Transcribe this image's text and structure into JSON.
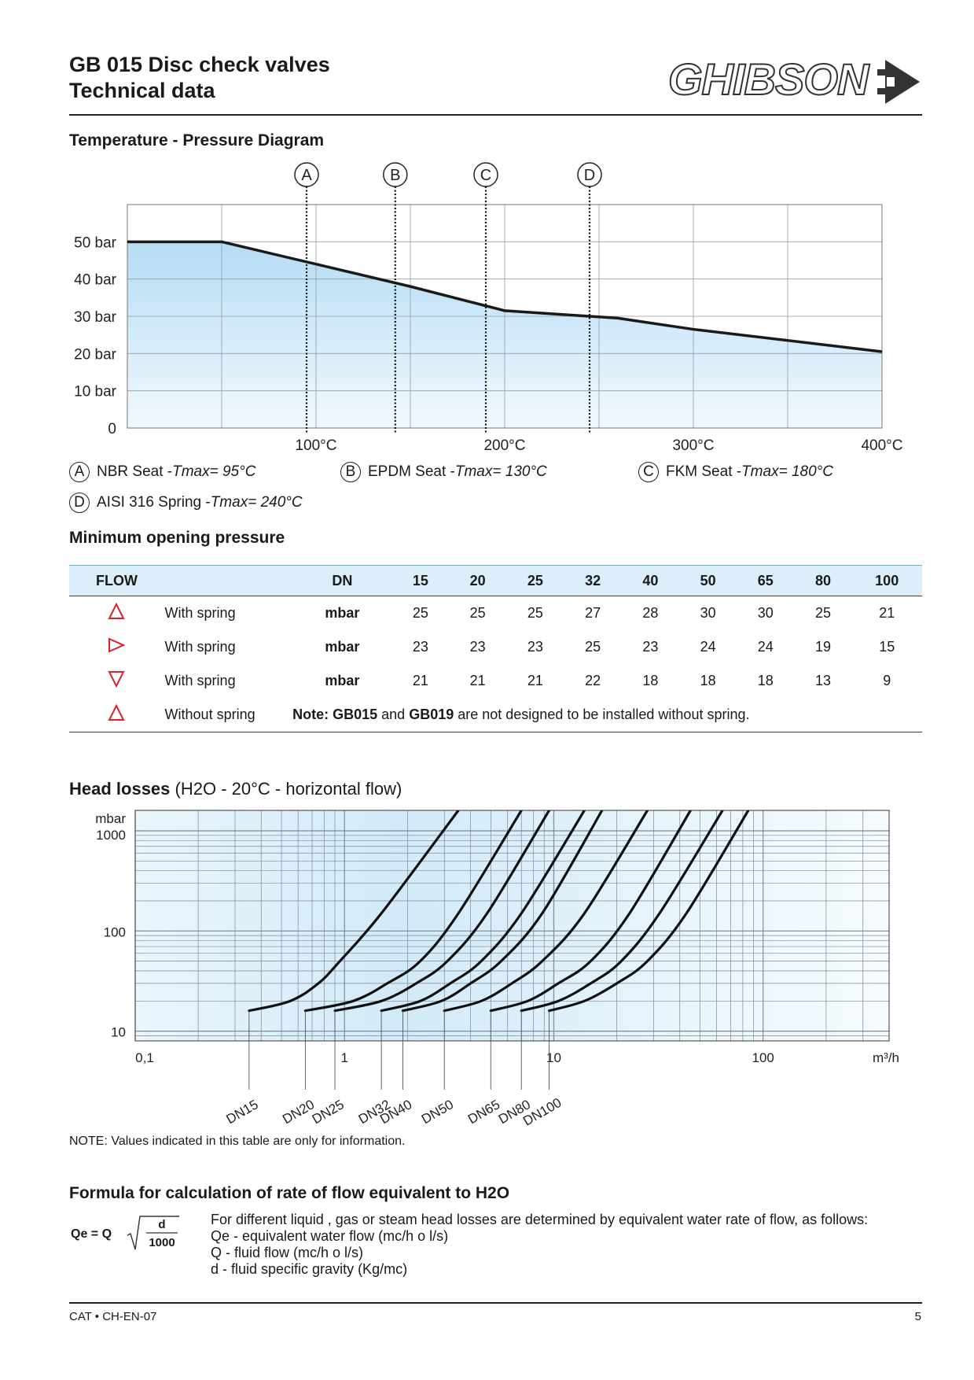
{
  "header": {
    "title_line1": "GB 015 Disc check valves",
    "title_line2": "Technical data",
    "logo_text": "GHIBSON"
  },
  "temp_section": {
    "heading": "Temperature - Pressure Diagram",
    "markers": [
      {
        "label": "A",
        "temp_c": 95
      },
      {
        "label": "B",
        "temp_c": 142
      },
      {
        "label": "C",
        "temp_c": 190
      },
      {
        "label": "D",
        "temp_c": 245
      }
    ],
    "legend": [
      {
        "letter": "A",
        "text": "NBR Seat - ",
        "italic": "Tmax= 95°C"
      },
      {
        "letter": "B",
        "text": "EPDM Seat - ",
        "italic": "Tmax= 130°C"
      },
      {
        "letter": "C",
        "text": "FKM Seat - ",
        "italic": "Tmax= 180°C"
      },
      {
        "letter": "D",
        "text": "AISI 316 Spring - ",
        "italic": "Tmax= 240°C"
      }
    ]
  },
  "chart_data": [
    {
      "type": "area",
      "title": "Temperature - Pressure Diagram",
      "x_tick_labels": [
        "100°C",
        "200°C",
        "300°C",
        "400°C"
      ],
      "y_tick_labels": [
        "0",
        "10 bar",
        "20 bar",
        "30 bar",
        "40 bar",
        "50 bar"
      ],
      "xlim": [
        0,
        400
      ],
      "ylim": [
        0,
        60
      ],
      "grid": true,
      "series": [
        {
          "x": [
            0,
            50,
            100,
            150,
            200,
            260,
            300,
            400
          ],
          "y": [
            50,
            50,
            44,
            38,
            31.5,
            29.5,
            26.5,
            20.5
          ]
        }
      ]
    },
    {
      "type": "line",
      "title": "Head losses (H2O - 20°C - horizontal flow)",
      "x_scale": "log",
      "y_scale": "log",
      "x_tick_labels": [
        "0,1",
        "1",
        "10",
        "100",
        "m³/h"
      ],
      "y_tick_labels": [
        "mbar",
        "1000",
        "100",
        "10"
      ],
      "xlim": [
        0.1,
        400
      ],
      "ylim": [
        8,
        1600
      ],
      "grid": true,
      "series": [
        {
          "name": "DN15",
          "x": [
            0.35,
            0.55,
            0.75,
            0.95,
            1.5,
            3.5
          ],
          "y": [
            16,
            20,
            30,
            50,
            150,
            1600
          ]
        },
        {
          "name": "DN20",
          "x": [
            0.65,
            1.1,
            1.6,
            2.3,
            3.5,
            7.0
          ],
          "y": [
            16,
            20,
            30,
            50,
            150,
            1600
          ]
        },
        {
          "name": "DN25",
          "x": [
            0.9,
            1.5,
            2.2,
            3.1,
            4.8,
            9.5
          ],
          "y": [
            16,
            20,
            30,
            50,
            150,
            1600
          ]
        },
        {
          "name": "DN32",
          "x": [
            1.5,
            2.3,
            3.2,
            4.5,
            7.0,
            14.0
          ],
          "y": [
            16,
            20,
            30,
            50,
            150,
            1600
          ]
        },
        {
          "name": "DN40",
          "x": [
            1.9,
            2.9,
            4.0,
            5.6,
            8.8,
            17.0
          ],
          "y": [
            16,
            20,
            30,
            50,
            150,
            1600
          ]
        },
        {
          "name": "DN50",
          "x": [
            3.0,
            4.5,
            6.3,
            8.8,
            14.0,
            28.0
          ],
          "y": [
            16,
            20,
            30,
            50,
            150,
            1600
          ]
        },
        {
          "name": "DN65",
          "x": [
            5.0,
            7.5,
            10.5,
            15.0,
            23.0,
            45.0
          ],
          "y": [
            16,
            20,
            30,
            50,
            150,
            1600
          ]
        },
        {
          "name": "DN80",
          "x": [
            7.0,
            10.5,
            15.0,
            21.0,
            32.0,
            64.0
          ],
          "y": [
            16,
            20,
            30,
            50,
            150,
            1600
          ]
        },
        {
          "name": "DN100",
          "x": [
            9.5,
            14.0,
            20.0,
            28.0,
            43.0,
            85.0
          ],
          "y": [
            16,
            20,
            30,
            50,
            150,
            1600
          ]
        }
      ]
    }
  ],
  "min_opening": {
    "heading": "Minimum opening pressure",
    "col_flow": "FLOW",
    "col_dn": "DN",
    "dn": [
      "15",
      "20",
      "25",
      "32",
      "40",
      "50",
      "65",
      "80",
      "100"
    ],
    "rows": [
      {
        "dir": "up",
        "label": "With spring",
        "unit": "mbar",
        "values": [
          "25",
          "25",
          "25",
          "27",
          "28",
          "30",
          "30",
          "25",
          "21"
        ]
      },
      {
        "dir": "right",
        "label": "With spring",
        "unit": "mbar",
        "values": [
          "23",
          "23",
          "23",
          "25",
          "23",
          "24",
          "24",
          "19",
          "15"
        ]
      },
      {
        "dir": "down",
        "label": "With spring",
        "unit": "mbar",
        "values": [
          "21",
          "21",
          "21",
          "22",
          "18",
          "18",
          "18",
          "13",
          "9"
        ]
      }
    ],
    "last_row": {
      "dir": "up",
      "label": "Without spring",
      "note_b1": "Note: GB015",
      "note_t1": " and ",
      "note_b2": "GB019",
      "note_t2": " are not designed to be installed without spring."
    },
    "arrow_color": "#e0202a"
  },
  "head_losses": {
    "heading_bold": "Head losses",
    "heading_rest": " (H2O - 20°C - horizontal flow)",
    "note": "NOTE: Values  indicated in this table are only for information."
  },
  "formula": {
    "heading": "Formula for calculation of rate of flow equivalent to H2O",
    "lhs": "Qe = Q",
    "numerator": "d",
    "denominator": "1000",
    "lines": [
      "For different liquid , gas or steam head losses are determined by equivalent water rate of flow, as follows:",
      "Qe - equivalent water flow  (mc/h o l/s)",
      "Q   - fluid flow (mc/h o l/s)",
      "d    - fluid specific gravity (Kg/mc)"
    ]
  },
  "footer": {
    "code": "CAT • CH-EN-07",
    "page": "5"
  }
}
